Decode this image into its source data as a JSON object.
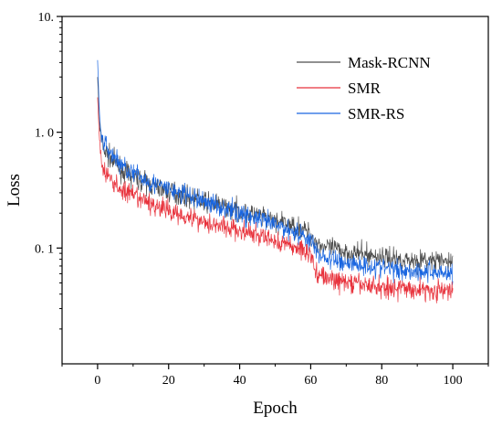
{
  "chart_data": {
    "type": "line",
    "title": "",
    "xlabel": "Epoch",
    "ylabel": "Loss",
    "xlim": [
      -10,
      110
    ],
    "ylim": [
      0.01,
      10
    ],
    "y_scale": "log",
    "x_ticks": [
      0,
      20,
      40,
      60,
      80,
      100
    ],
    "x_tick_labels": [
      "0",
      "20",
      "40",
      "60",
      "80",
      "100"
    ],
    "y_ticks": [
      0.1,
      1,
      10
    ],
    "y_tick_labels": [
      "0. 1",
      "1. 0",
      "10."
    ],
    "grid": false,
    "legend_position": "top-right",
    "series": [
      {
        "name": "Mask-RCNN",
        "color": "#4d4d4d",
        "points": [
          [
            0,
            3.0
          ],
          [
            0.5,
            1.3
          ],
          [
            1,
            0.85
          ],
          [
            2,
            0.68
          ],
          [
            4,
            0.58
          ],
          [
            6,
            0.5
          ],
          [
            8,
            0.44
          ],
          [
            10,
            0.41
          ],
          [
            15,
            0.35
          ],
          [
            20,
            0.31
          ],
          [
            25,
            0.28
          ],
          [
            30,
            0.25
          ],
          [
            35,
            0.23
          ],
          [
            40,
            0.21
          ],
          [
            45,
            0.19
          ],
          [
            50,
            0.17
          ],
          [
            55,
            0.155
          ],
          [
            58,
            0.145
          ],
          [
            60,
            0.13
          ],
          [
            62,
            0.11
          ],
          [
            65,
            0.1
          ],
          [
            70,
            0.093
          ],
          [
            75,
            0.088
          ],
          [
            80,
            0.084
          ],
          [
            85,
            0.08
          ],
          [
            90,
            0.078
          ],
          [
            95,
            0.077
          ],
          [
            100,
            0.076
          ]
        ]
      },
      {
        "name": "SMR",
        "color": "#e8323c",
        "points": [
          [
            0,
            2.0
          ],
          [
            0.5,
            0.9
          ],
          [
            1,
            0.55
          ],
          [
            2,
            0.45
          ],
          [
            4,
            0.38
          ],
          [
            6,
            0.33
          ],
          [
            8,
            0.3
          ],
          [
            10,
            0.28
          ],
          [
            15,
            0.24
          ],
          [
            20,
            0.21
          ],
          [
            25,
            0.19
          ],
          [
            30,
            0.17
          ],
          [
            35,
            0.155
          ],
          [
            40,
            0.14
          ],
          [
            45,
            0.128
          ],
          [
            50,
            0.115
          ],
          [
            55,
            0.103
          ],
          [
            58,
            0.096
          ],
          [
            60,
            0.09
          ],
          [
            61,
            0.065
          ],
          [
            63,
            0.058
          ],
          [
            65,
            0.054
          ],
          [
            70,
            0.05
          ],
          [
            75,
            0.048
          ],
          [
            80,
            0.046
          ],
          [
            85,
            0.045
          ],
          [
            90,
            0.044
          ],
          [
            95,
            0.043
          ],
          [
            100,
            0.042
          ]
        ]
      },
      {
        "name": "SMR-RS",
        "color": "#1a66e0",
        "points": [
          [
            0,
            4.2
          ],
          [
            0.5,
            1.5
          ],
          [
            1,
            0.95
          ],
          [
            2,
            0.78
          ],
          [
            4,
            0.65
          ],
          [
            6,
            0.55
          ],
          [
            8,
            0.49
          ],
          [
            10,
            0.44
          ],
          [
            15,
            0.37
          ],
          [
            20,
            0.32
          ],
          [
            25,
            0.285
          ],
          [
            30,
            0.255
          ],
          [
            35,
            0.225
          ],
          [
            40,
            0.2
          ],
          [
            45,
            0.178
          ],
          [
            50,
            0.158
          ],
          [
            55,
            0.14
          ],
          [
            58,
            0.128
          ],
          [
            60,
            0.115
          ],
          [
            62,
            0.09
          ],
          [
            65,
            0.08
          ],
          [
            70,
            0.075
          ],
          [
            75,
            0.071
          ],
          [
            80,
            0.068
          ],
          [
            85,
            0.065
          ],
          [
            90,
            0.063
          ],
          [
            95,
            0.062
          ],
          [
            100,
            0.061
          ]
        ]
      }
    ]
  }
}
